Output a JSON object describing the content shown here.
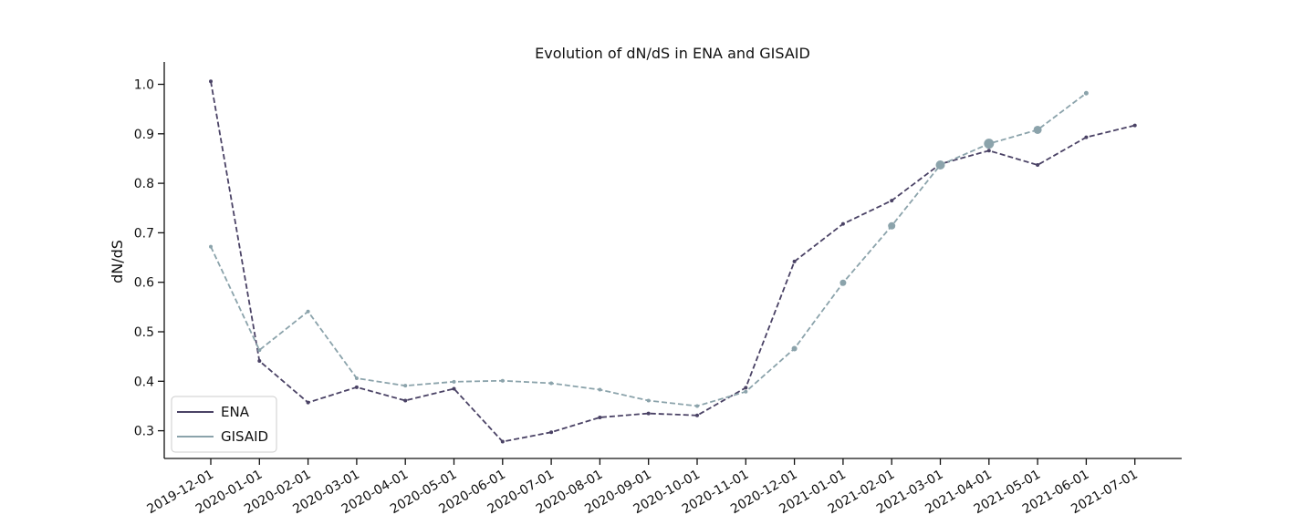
{
  "chart_data": {
    "type": "line",
    "title": "Evolution of dN/dS in ENA and GISAID",
    "xlabel": "",
    "ylabel": "dN/dS",
    "x": [
      "2019-12-01",
      "2020-01-01",
      "2020-02-01",
      "2020-03-01",
      "2020-04-01",
      "2020-05-01",
      "2020-06-01",
      "2020-07-01",
      "2020-08-01",
      "2020-09-01",
      "2020-10-01",
      "2020-11-01",
      "2020-12-01",
      "2021-01-01",
      "2021-02-01",
      "2021-03-01",
      "2021-04-01",
      "2021-05-01",
      "2021-06-01",
      "2021-07-01"
    ],
    "yticks": [
      "0.3",
      "0.4",
      "0.5",
      "0.6",
      "0.7",
      "0.8",
      "0.9",
      "1.0"
    ],
    "ylim": [
      0.24,
      1.04
    ],
    "grid": false,
    "legend_position": "lower-left",
    "series": [
      {
        "name": "ENA",
        "color": "#4a4265",
        "line_style": "dashed",
        "values": [
          1.006,
          0.441,
          0.357,
          0.388,
          0.361,
          0.385,
          0.278,
          0.297,
          0.327,
          0.335,
          0.331,
          0.387,
          0.642,
          0.718,
          0.765,
          0.839,
          0.866,
          0.837,
          0.893,
          0.917
        ],
        "marker_sizes": [
          2,
          2,
          2,
          2,
          2,
          2,
          2,
          2,
          2,
          2,
          2,
          2,
          2,
          2,
          2,
          2,
          2,
          2,
          2,
          2
        ]
      },
      {
        "name": "GISAID",
        "color": "#8ba3ab",
        "line_style": "dashed",
        "values": [
          0.672,
          0.463,
          0.541,
          0.406,
          0.391,
          0.399,
          0.401,
          0.396,
          0.383,
          0.361,
          0.35,
          0.379,
          0.466,
          0.599,
          0.714,
          0.837,
          0.88,
          0.908,
          0.982,
          null
        ],
        "marker_sizes": [
          2,
          2,
          2,
          2,
          2,
          2,
          2,
          2,
          2,
          2,
          2,
          2,
          3,
          3.5,
          4,
          5,
          5.5,
          4.5,
          2.5,
          0
        ]
      }
    ]
  }
}
